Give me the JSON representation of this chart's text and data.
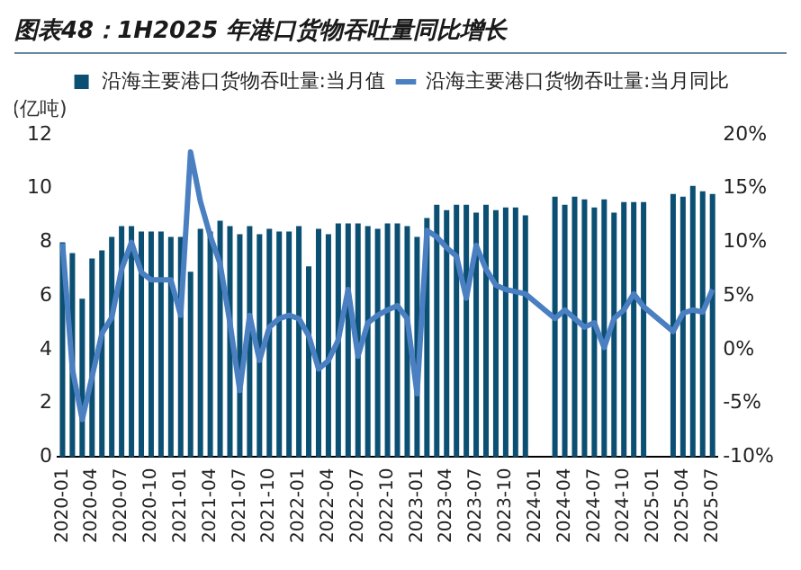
{
  "chart_data": {
    "type": "bar",
    "title": "图表48：1H2025 年港口货物吞吐量同比增长",
    "ylabel": "(亿吨)",
    "categories": [
      "2020-01",
      null,
      null,
      "2020-04",
      null,
      null,
      "2020-07",
      null,
      null,
      "2020-10",
      null,
      null,
      "2021-01",
      null,
      null,
      "2021-04",
      null,
      null,
      "2021-07",
      null,
      null,
      "2021-10",
      null,
      null,
      "2022-01",
      null,
      null,
      "2022-04",
      null,
      null,
      "2022-07",
      null,
      null,
      "2022-10",
      null,
      null,
      "2023-01",
      null,
      null,
      "2023-04",
      null,
      null,
      "2023-07",
      null,
      null,
      "2023-10",
      null,
      null,
      "2024-01",
      null,
      null,
      "2024-04",
      null,
      null,
      "2024-07",
      null,
      null,
      "2024-10",
      null,
      null,
      "2025-01",
      null,
      null,
      "2025-04",
      null,
      null,
      "2025-07"
    ],
    "series": [
      {
        "name": "沿海主要港口货物吞吐量:当月值",
        "color": "#0b4f73",
        "values": [
          8.0,
          7.6,
          5.9,
          7.4,
          7.7,
          8.2,
          8.6,
          8.6,
          8.4,
          8.4,
          8.4,
          8.2,
          8.2,
          6.9,
          8.5,
          8.4,
          8.8,
          8.6,
          8.3,
          8.6,
          8.3,
          8.5,
          8.4,
          8.4,
          8.6,
          7.1,
          8.5,
          8.3,
          8.7,
          8.7,
          8.7,
          8.6,
          8.5,
          8.7,
          8.7,
          8.6,
          8.2,
          8.9,
          9.4,
          9.2,
          9.4,
          9.4,
          9.1,
          9.4,
          9.2,
          9.3,
          9.3,
          9.0,
          null,
          null,
          9.7,
          9.4,
          9.7,
          9.6,
          9.3,
          9.6,
          9.1,
          9.5,
          9.5,
          9.5,
          null,
          null,
          9.8,
          9.7,
          10.1,
          9.9,
          9.8
        ]
      },
      {
        "name": "沿海主要港口货物吞吐量:当月同比",
        "type": "line",
        "axis": "y2",
        "color": "#4a7fc1",
        "values": [
          9.9,
          -1.8,
          -6.5,
          -2.5,
          1.5,
          3.0,
          7.5,
          10.0,
          7.2,
          6.5,
          6.5,
          6.5,
          3.2,
          18.4,
          13.8,
          10.6,
          8.0,
          2.5,
          -3.8,
          3.2,
          -1.0,
          2.1,
          2.9,
          3.2,
          2.9,
          1.3,
          -1.8,
          -1.0,
          0.9,
          5.6,
          -0.6,
          2.5,
          3.2,
          3.7,
          4.1,
          2.9,
          -4.1,
          11.1,
          10.5,
          9.5,
          8.7,
          4.8,
          9.7,
          7.5,
          6.0,
          5.6,
          5.4,
          5.2,
          null,
          null,
          2.9,
          3.7,
          2.9,
          2.1,
          2.5,
          0.2,
          2.9,
          3.7,
          5.2,
          4.0,
          null,
          null,
          1.7,
          3.4,
          3.7,
          3.5,
          5.6
        ]
      }
    ],
    "ylim": [
      0,
      12
    ],
    "yticks": [
      0,
      2,
      4,
      6,
      8,
      10,
      12
    ],
    "y2lim": [
      -10,
      20
    ],
    "y2ticks": [
      {
        "value": -10,
        "label": "-10%"
      },
      {
        "value": -5,
        "label": "-5%"
      },
      {
        "value": 0,
        "label": "0%"
      },
      {
        "value": 5,
        "label": "5%"
      },
      {
        "value": 10,
        "label": "10%"
      },
      {
        "value": 15,
        "label": "15%"
      },
      {
        "value": 20,
        "label": "20%"
      }
    ],
    "grid": false,
    "legend": "top"
  }
}
